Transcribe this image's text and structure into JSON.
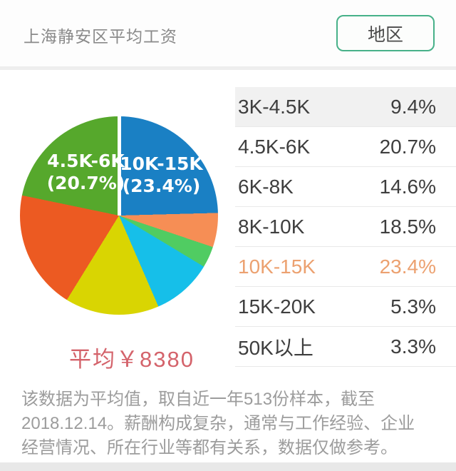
{
  "header": {
    "title": "上海静安区平均工资",
    "region_button_label": "地区"
  },
  "chart_data": {
    "type": "pie",
    "title": "上海静安区平均工资",
    "unit": "percent",
    "direction": "clockwise",
    "start_angle_deg": 0,
    "slices": [
      {
        "label": "10K-15K",
        "value": 23.4,
        "color": "#1a80c4"
      },
      {
        "label": "15K-20K",
        "value": 5.3,
        "color": "#f68e55"
      },
      {
        "label": "50K以上",
        "value": 3.3,
        "color": "#50cc62"
      },
      {
        "label": "3K-4.5K",
        "value": 9.4,
        "color": "#16bfe9"
      },
      {
        "label": "6K-8K",
        "value": 14.6,
        "color": "#d9d502"
      },
      {
        "label": "8K-10K",
        "value": 18.5,
        "color": "#ec5a22"
      },
      {
        "label": "4.5K-6K",
        "value": 20.7,
        "color": "#56a82c"
      }
    ],
    "callouts": {
      "left": {
        "line1": "4.5K-6K",
        "line2": "(20.7%)"
      },
      "right": {
        "line1": "10K-15K",
        "line2": "(23.4%)"
      }
    },
    "average_label": "平均￥8380"
  },
  "table": {
    "rows": [
      {
        "range": "3K-4.5K",
        "percent": "9.4%",
        "shaded": true,
        "accent": false
      },
      {
        "range": "4.5K-6K",
        "percent": "20.7%",
        "shaded": false,
        "accent": false
      },
      {
        "range": "6K-8K",
        "percent": "14.6%",
        "shaded": false,
        "accent": false
      },
      {
        "range": "8K-10K",
        "percent": "18.5%",
        "shaded": false,
        "accent": false
      },
      {
        "range": "10K-15K",
        "percent": "23.4%",
        "shaded": false,
        "accent": true
      },
      {
        "range": "15K-20K",
        "percent": "5.3%",
        "shaded": false,
        "accent": false
      },
      {
        "range": "50K以上",
        "percent": "3.3%",
        "shaded": false,
        "accent": false
      }
    ]
  },
  "footnote": "该数据为平均值，取自近一年513份样本，截至\n2018.12.14。薪酬构成复杂，通常与工作经验、企业\n经营情况、所在行业等都有关系，数据仅做参考。",
  "colors": {
    "accent_row_text": "#eca170",
    "average_text": "#d4636b",
    "button_border": "#47b189",
    "header_title_text": "#8a8a8a",
    "row_shaded_bg": "#f1f1f1"
  }
}
